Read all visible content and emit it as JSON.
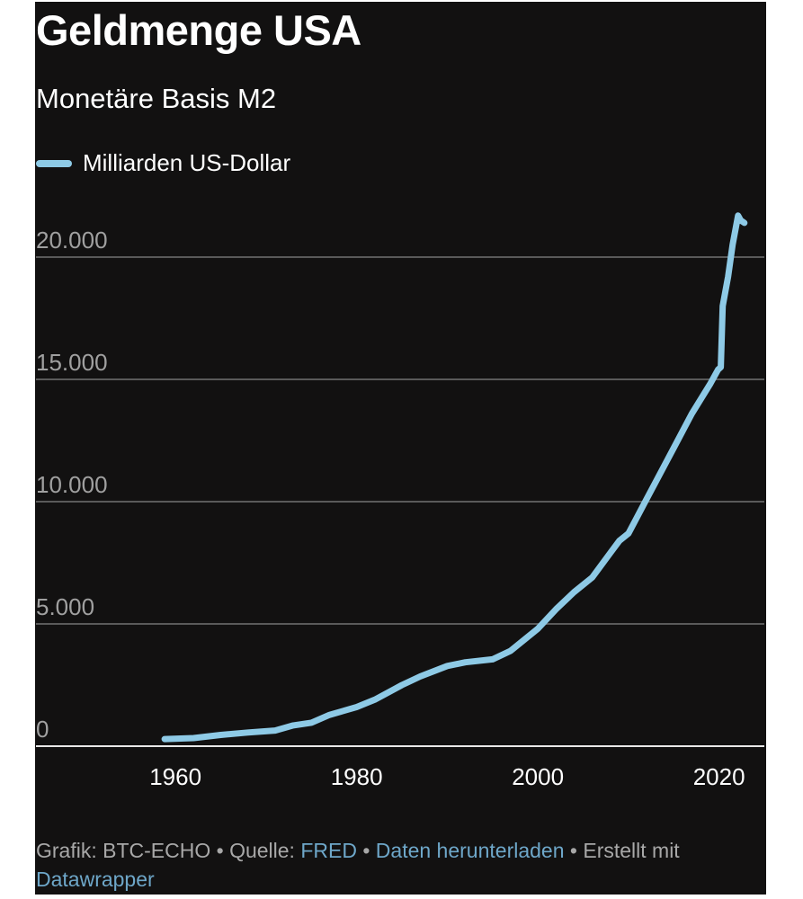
{
  "chart_data": {
    "type": "line",
    "title": "Geldmenge USA",
    "subtitle": "Monetäre Basis M2",
    "legend": [
      {
        "label": "Milliarden US-Dollar",
        "color": "#8ecae6"
      }
    ],
    "legend_placement": "top-left",
    "xlabel": "",
    "ylabel": "",
    "xlim": [
      1944.6,
      2025
    ],
    "ylim": [
      0,
      21700
    ],
    "x_ticks": [
      {
        "v": 1960,
        "label": "1960"
      },
      {
        "v": 1980,
        "label": "1980"
      },
      {
        "v": 2000,
        "label": "2000"
      },
      {
        "v": 2020,
        "label": "2020"
      }
    ],
    "y_ticks": [
      {
        "v": 0,
        "label": "0"
      },
      {
        "v": 5000,
        "label": "5.000"
      },
      {
        "v": 10000,
        "label": "10.000"
      },
      {
        "v": 15000,
        "label": "15.000"
      },
      {
        "v": 20000,
        "label": "20.000"
      }
    ],
    "grid": true,
    "series": [
      {
        "name": "Milliarden US-Dollar",
        "color": "#8ecae6",
        "x": [
          1958.8,
          1962,
          1965,
          1968,
          1971,
          1973,
          1975,
          1977,
          1980,
          1982,
          1985,
          1987,
          1990,
          1992,
          1995,
          1997,
          2000,
          2002,
          2004,
          2006,
          2008,
          2009,
          2010,
          2011,
          2012,
          2013,
          2015,
          2017,
          2019,
          2019.9,
          2020.2,
          2020.4,
          2021,
          2021.5,
          2022.1,
          2022.4,
          2022.8
        ],
        "y": [
          290,
          330,
          460,
          560,
          640,
          850,
          960,
          1280,
          1600,
          1900,
          2500,
          2850,
          3280,
          3430,
          3550,
          3900,
          4800,
          5600,
          6300,
          6900,
          7900,
          8400,
          8700,
          9400,
          10100,
          10800,
          12200,
          13600,
          14800,
          15400,
          15500,
          18000,
          19200,
          20500,
          21700,
          21500,
          21400
        ]
      }
    ]
  },
  "footer": {
    "credit": "Grafik: BTC-ECHO • Quelle: ",
    "source_link": "FRED",
    "sep": " • ",
    "download_link": "Daten herunterladen",
    "created": " • Erstellt mit",
    "tool_link": "Datawrapper"
  }
}
